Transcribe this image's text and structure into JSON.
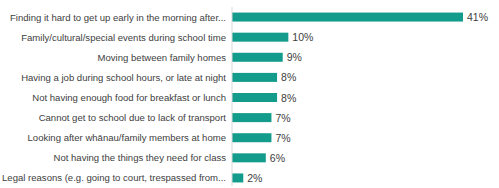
{
  "chart_data": {
    "type": "bar",
    "orientation": "horizontal",
    "categories": [
      "Finding it hard to get up early in the morning after...",
      "Family/cultural/special events during school time",
      "Moving between family homes",
      "Having a job during school hours, or late at night",
      "Not having enough food for breakfast or lunch",
      "Cannot get to school due to lack of transport",
      "Looking after whānau/family members at home",
      "Not having the things they need for class",
      "Legal reasons (e.g. going to court, trespassed from..."
    ],
    "values": [
      41,
      10,
      9,
      8,
      8,
      7,
      7,
      6,
      2
    ],
    "value_labels": [
      "41%",
      "10%",
      "9%",
      "8%",
      "8%",
      "7%",
      "7%",
      "6%",
      "2%"
    ],
    "color": "#139c8b",
    "xlim": [
      0,
      41
    ],
    "data_labels": true,
    "tick_labels": "y",
    "grid": false
  }
}
